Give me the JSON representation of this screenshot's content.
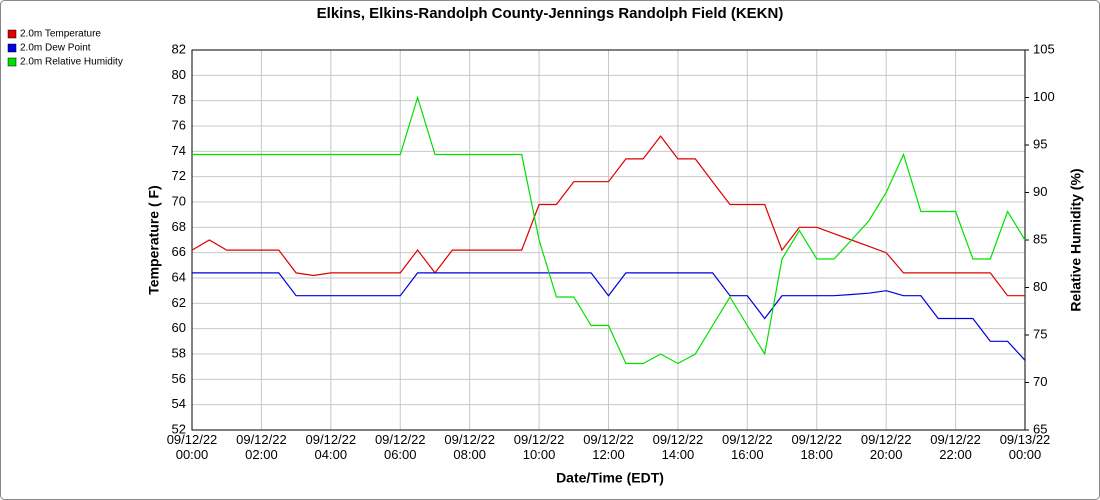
{
  "chart_data": {
    "type": "line",
    "title": "Elkins, Elkins-Randolph County-Jennings Randolph Field (KEKN)",
    "x_label": "Date/Time (EDT)",
    "y_label": "Temperature ( F)",
    "y2_label": "Relative Humidity (%)",
    "x": [
      "09/12/22 00:00",
      "09/12/22 00:30",
      "09/12/22 01:00",
      "09/12/22 01:30",
      "09/12/22 02:00",
      "09/12/22 02:30",
      "09/12/22 03:00",
      "09/12/22 03:30",
      "09/12/22 04:00",
      "09/12/22 04:30",
      "09/12/22 05:00",
      "09/12/22 05:30",
      "09/12/22 06:00",
      "09/12/22 06:30",
      "09/12/22 07:00",
      "09/12/22 07:30",
      "09/12/22 08:00",
      "09/12/22 08:30",
      "09/12/22 09:00",
      "09/12/22 09:30",
      "09/12/22 10:00",
      "09/12/22 10:30",
      "09/12/22 11:00",
      "09/12/22 11:30",
      "09/12/22 12:00",
      "09/12/22 12:30",
      "09/12/22 13:00",
      "09/12/22 13:30",
      "09/12/22 14:00",
      "09/12/22 14:30",
      "09/12/22 15:00",
      "09/12/22 15:30",
      "09/12/22 16:00",
      "09/12/22 16:30",
      "09/12/22 17:00",
      "09/12/22 17:30",
      "09/12/22 18:00",
      "09/12/22 18:30",
      "09/12/22 19:00",
      "09/12/22 19:30",
      "09/12/22 20:00",
      "09/12/22 20:30",
      "09/12/22 21:00",
      "09/12/22 21:30",
      "09/12/22 22:00",
      "09/12/22 22:30",
      "09/12/22 23:00",
      "09/12/22 23:30",
      "09/13/22 00:00"
    ],
    "series": [
      {
        "name": "2.0m Temperature",
        "color": "#e00000",
        "values": [
          66.2,
          67,
          66.2,
          66.2,
          66.2,
          66.2,
          64.4,
          64.2,
          64.4,
          64.4,
          64.4,
          64.4,
          64.4,
          66.2,
          64.4,
          66.2,
          66.2,
          66.2,
          66.2,
          66.2,
          69.8,
          69.8,
          71.6,
          71.6,
          71.6,
          73.4,
          73.4,
          75.2,
          73.4,
          73.4,
          71.6,
          69.8,
          69.8,
          69.8,
          66.2,
          68,
          68,
          67.5,
          67,
          66.5,
          66,
          64.4,
          64.4,
          64.4,
          64.4,
          64.4,
          64.4,
          62.6,
          62.6
        ]
      },
      {
        "name": "2.0m Dew Point",
        "color": "#0000e0",
        "values": [
          64.4,
          64.4,
          64.4,
          64.4,
          64.4,
          64.4,
          62.6,
          62.6,
          62.6,
          62.6,
          62.6,
          62.6,
          62.6,
          64.4,
          64.4,
          64.4,
          64.4,
          64.4,
          64.4,
          64.4,
          64.4,
          64.4,
          64.4,
          64.4,
          62.6,
          64.4,
          64.4,
          64.4,
          64.4,
          64.4,
          64.4,
          62.6,
          62.6,
          60.8,
          62.6,
          62.6,
          62.6,
          62.6,
          62.7,
          62.8,
          63,
          62.6,
          62.6,
          60.8,
          60.8,
          60.8,
          59,
          59,
          57.5
        ]
      },
      {
        "name": "2.0m Relative Humidity",
        "color": "#00e000",
        "axis": "y2",
        "values": [
          94,
          94,
          94,
          94,
          94,
          94,
          94,
          94,
          94,
          94,
          94,
          94,
          94,
          100,
          94,
          94,
          94,
          94,
          94,
          94,
          85,
          79,
          79,
          76,
          76,
          72,
          72,
          73,
          72,
          73,
          76,
          79,
          76,
          73,
          83,
          86,
          83,
          83,
          85,
          87,
          90,
          94,
          88,
          88,
          88,
          83,
          83,
          88,
          85
        ]
      }
    ],
    "xticks": [
      "09/12/22 00:00",
      "09/12/22 02:00",
      "09/12/22 04:00",
      "09/12/22 06:00",
      "09/12/22 08:00",
      "09/12/22 10:00",
      "09/12/22 12:00",
      "09/12/22 14:00",
      "09/12/22 16:00",
      "09/12/22 18:00",
      "09/12/22 20:00",
      "09/12/22 22:00",
      "09/13/22 00:00"
    ],
    "ylim": [
      52,
      82
    ],
    "yticks": [
      52,
      54,
      56,
      58,
      60,
      62,
      64,
      66,
      68,
      70,
      72,
      74,
      76,
      78,
      80,
      82
    ],
    "y2lim": [
      65,
      105
    ],
    "y2ticks": [
      65,
      70,
      75,
      80,
      85,
      90,
      95,
      100,
      105
    ],
    "grid": true,
    "legend": "top-left"
  }
}
